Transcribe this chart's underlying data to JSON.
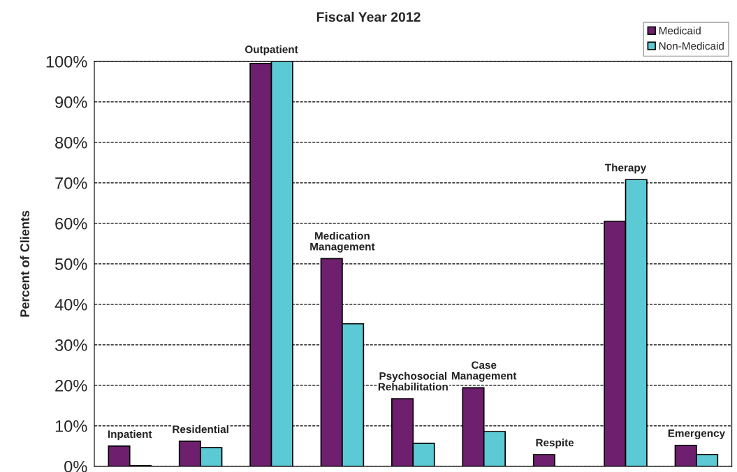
{
  "chart_data": {
    "type": "bar",
    "title": "Fiscal Year 2012",
    "ylabel": "Percent of Clients",
    "categories": [
      "Inpatient",
      "Residential",
      "Outpatient",
      "Medication\nManagement",
      "Psychosocial\nRehabilitation",
      "Case\nManagement",
      "Respite",
      "Therapy",
      "Emergency"
    ],
    "series": [
      {
        "name": "Medicaid",
        "color": "#6e1f6e",
        "values": [
          5.0,
          6.2,
          99.5,
          51.3,
          16.7,
          19.4,
          2.9,
          60.5,
          5.2
        ]
      },
      {
        "name": "Non-Medicaid",
        "color": "#5ccad4",
        "values": [
          0.2,
          4.6,
          100,
          35.2,
          5.7,
          8.6,
          null,
          70.8,
          2.9
        ]
      }
    ],
    "ylim": [
      0,
      100
    ],
    "yticks": [
      {
        "value": 0,
        "label": "0%"
      },
      {
        "value": 10,
        "label": "10%"
      },
      {
        "value": 20,
        "label": "20%"
      },
      {
        "value": 30,
        "label": "30%"
      },
      {
        "value": 40,
        "label": "40%"
      },
      {
        "value": 50,
        "label": "50%"
      },
      {
        "value": 60,
        "label": "60%"
      },
      {
        "value": 70,
        "label": "70%"
      },
      {
        "value": 80,
        "label": "80%"
      },
      {
        "value": 90,
        "label": "90%"
      },
      {
        "value": 100,
        "label": "100%"
      }
    ],
    "grid": "y",
    "legend": "top right",
    "tick_labels": "y"
  }
}
